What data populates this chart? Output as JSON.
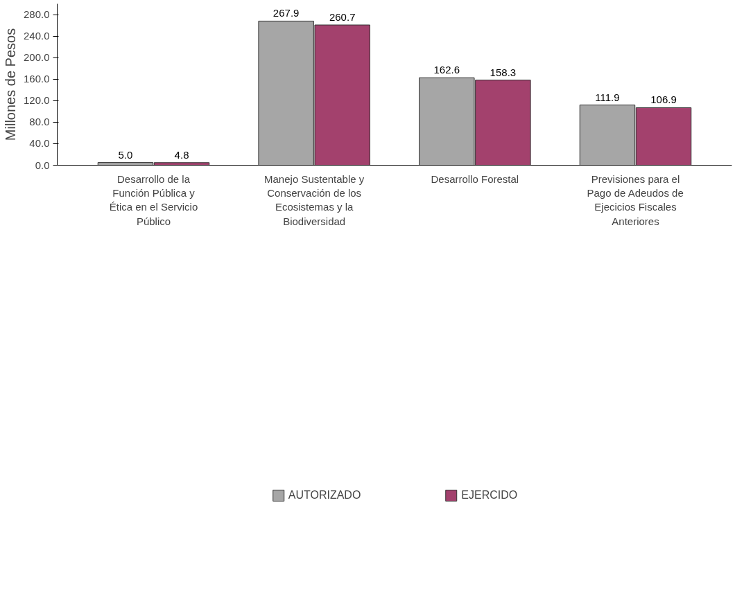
{
  "chart_data": {
    "type": "bar",
    "ylabel": "Millones de Pesos",
    "categories": [
      "Desarrollo de la Función Pública y Ética en el Servicio Público",
      "Manejo Sustentable y Conservación de los Ecosistemas y la Biodiversidad",
      "Desarrollo Forestal",
      "Previsiones para el Pago de Adeudos de Ejecicios Fiscales Anteriores"
    ],
    "series": [
      {
        "name": "AUTORIZADO",
        "color": "#a6a6a6",
        "values": [
          5.0,
          267.9,
          162.6,
          111.9
        ],
        "value_labels": [
          "5.0",
          "267.9",
          "162.6",
          "111.9"
        ]
      },
      {
        "name": "EJERCIDO",
        "color": "#a3416d",
        "values": [
          4.8,
          260.7,
          158.3,
          106.9
        ],
        "value_labels": [
          "4.8",
          "260.7",
          "158.3",
          "106.9"
        ]
      }
    ],
    "ylim": [
      0,
      300
    ],
    "yticks": [
      {
        "value": 0,
        "label": "0.0"
      },
      {
        "value": 40,
        "label": "40.0"
      },
      {
        "value": 80,
        "label": "80.0"
      },
      {
        "value": 120,
        "label": "120.0"
      },
      {
        "value": 160,
        "label": "160.0"
      },
      {
        "value": 200,
        "label": "200.0"
      },
      {
        "value": 240,
        "label": "240.0"
      },
      {
        "value": 280,
        "label": "280.0"
      }
    ],
    "grid": false,
    "legend": "bottom"
  }
}
